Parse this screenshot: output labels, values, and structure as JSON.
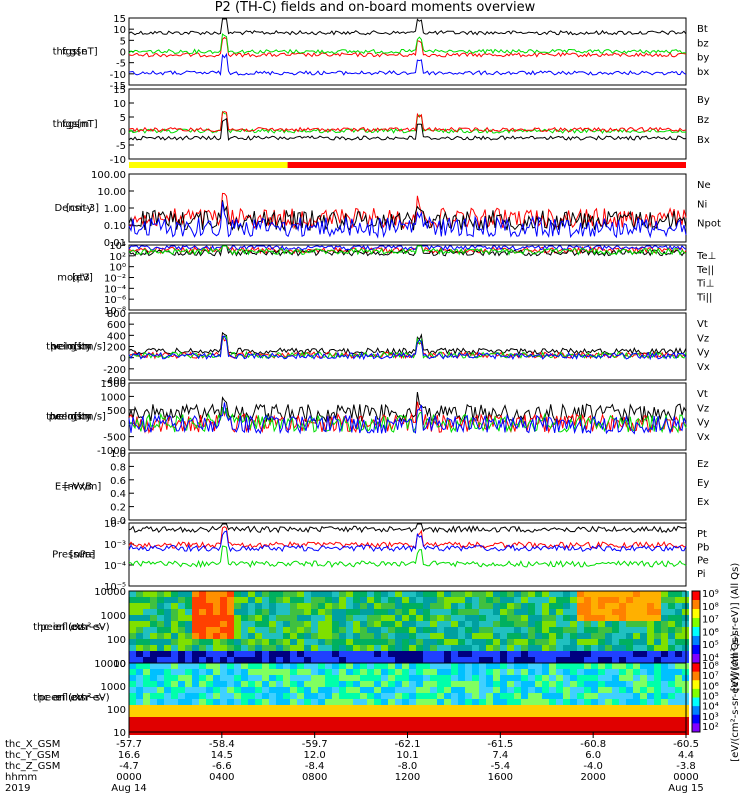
{
  "title": "P2 (TH-C) fields and on-board moments overview",
  "chart_data": {
    "type": "line",
    "title": "P2 (TH-C) fields and on-board moments overview",
    "panels": [
      {
        "id": "fgs_gse",
        "ylabel": [
          "thc",
          "fgs",
          "gse",
          "[nT]"
        ],
        "ylim": [
          -15,
          15
        ],
        "ticks": [
          "15",
          "10",
          "5",
          "0",
          "-5",
          "-10",
          "-15"
        ],
        "series": [
          {
            "name": "Bt",
            "color": "#000000"
          },
          {
            "name": "bz",
            "color": "#ff0000"
          },
          {
            "name": "by",
            "color": "#00dd00"
          },
          {
            "name": "bx",
            "color": "#0000ff"
          }
        ]
      },
      {
        "id": "fgs_gsm",
        "ylabel": [
          "thc",
          "fgs",
          "gsm",
          "[nT]"
        ],
        "ylim": [
          -15,
          15
        ],
        "ticks": [
          "15",
          "10",
          "5",
          "0",
          "-5",
          "-10"
        ],
        "series": [
          {
            "name": "By",
            "color": "#00dd00"
          },
          {
            "name": "Bz",
            "color": "#ff0000"
          },
          {
            "name": "Bx",
            "color": "#000000"
          }
        ]
      },
      {
        "id": "density",
        "ylabel": [
          "Density",
          "[cm-3]"
        ],
        "scale": "log",
        "ticks": [
          "100.00",
          "10.00",
          "1.00",
          "0.10",
          "0.01"
        ],
        "series": [
          {
            "name": "Ne",
            "color": "#ff0000"
          },
          {
            "name": "Ni",
            "color": "#000000"
          },
          {
            "name": "Npot",
            "color": "#0000ff"
          }
        ]
      },
      {
        "id": "temp",
        "ylabel": [
          "moqt3",
          "[eV]"
        ],
        "scale": "log",
        "ticks": [
          "10⁴",
          "10²",
          "10⁰",
          "10⁻²",
          "10⁻⁴",
          "10⁻⁶",
          "10⁻⁸"
        ],
        "series": [
          {
            "name": "Te⊥",
            "color": "#ff0000"
          },
          {
            "name": "Te||",
            "color": "#000000"
          },
          {
            "name": "Ti⊥",
            "color": "#0000ff"
          },
          {
            "name": "Ti||",
            "color": "#00dd00"
          }
        ]
      },
      {
        "id": "ivel",
        "ylabel": [
          "thc",
          "peim",
          "velocity",
          "gsm",
          "[km/s]"
        ],
        "ylim": [
          -400,
          800
        ],
        "ticks": [
          "800",
          "600",
          "400",
          "200",
          "0",
          "-200",
          "-400"
        ],
        "series": [
          {
            "name": "Vt",
            "color": "#000000"
          },
          {
            "name": "Vz",
            "color": "#ff0000"
          },
          {
            "name": "Vy",
            "color": "#00dd00"
          },
          {
            "name": "Vx",
            "color": "#0000ff"
          }
        ]
      },
      {
        "id": "evel",
        "ylabel": [
          "thc",
          "peem",
          "velocity",
          "gsm",
          "[km/s]"
        ],
        "ylim": [
          -1000,
          1500
        ],
        "ticks": [
          "1500",
          "1000",
          "500",
          "0",
          "-500",
          "-1000"
        ],
        "series": [
          {
            "name": "Vt",
            "color": "#000000"
          },
          {
            "name": "Vz",
            "color": "#ff0000"
          },
          {
            "name": "Vy",
            "color": "#00dd00"
          },
          {
            "name": "Vx",
            "color": "#0000ff"
          }
        ]
      },
      {
        "id": "efield",
        "ylabel": [
          "E=-VxB",
          "[mV/m]"
        ],
        "ylim": [
          0,
          1
        ],
        "ticks": [
          "1.0",
          "0.8",
          "0.6",
          "0.4",
          "0.2",
          "0.0"
        ],
        "series": [
          {
            "name": "Ez",
            "color": "#ff0000"
          },
          {
            "name": "Ey",
            "color": "#00dd00"
          },
          {
            "name": "Ex",
            "color": "#0000ff"
          }
        ]
      },
      {
        "id": "pressure",
        "ylabel": [
          "Pressure",
          "[nPa]"
        ],
        "scale": "log",
        "ticks": [
          "10⁻²",
          "10⁻³",
          "10⁻⁴",
          "10⁻⁵"
        ],
        "series": [
          {
            "name": "Pt",
            "color": "#000000"
          },
          {
            "name": "Pb",
            "color": "#ff0000"
          },
          {
            "name": "Pe",
            "color": "#00dd00"
          },
          {
            "name": "Pi",
            "color": "#0000ff"
          }
        ]
      },
      {
        "id": "ion_spec",
        "type": "heatmap",
        "ylabel": [
          "thc",
          "peir",
          "en",
          "eflux",
          "eV",
          "(cm²-s-",
          "sr-eV)"
        ],
        "ticks": [
          "10000",
          "1000",
          "100",
          "10"
        ]
      },
      {
        "id": "elec_spec",
        "type": "heatmap",
        "ylabel": [
          "thc",
          "peer",
          "en",
          "eflux",
          "eV",
          "(cm²-s-",
          "sr-eV)"
        ],
        "ticks": [
          "10000",
          "1000",
          "100",
          "10"
        ]
      }
    ],
    "colorbars": [
      {
        "label": "[eV/(cm²-s-sr-eV)] (All Qs)",
        "ticks": [
          "10⁹",
          "10⁸",
          "10⁷",
          "10⁶",
          "10⁵",
          "10⁴"
        ]
      },
      {
        "label": "[eV/(cm²-s-sr-eV)] (All Qs)",
        "ticks": [
          "10⁸",
          "10⁷",
          "10⁶",
          "10⁵",
          "10⁴",
          "10³",
          "10²"
        ]
      }
    ],
    "x_axis": {
      "row_labels": [
        "thc_X_GSM",
        "thc_Y_GSM",
        "thc_Z_GSM",
        "hhmm",
        "2019"
      ],
      "ticks": [
        {
          "vals": [
            "-57.7",
            "16.6",
            "-4.7",
            "0000",
            "Aug 14"
          ]
        },
        {
          "vals": [
            "-58.4",
            "14.5",
            "-6.6",
            "0400",
            ""
          ]
        },
        {
          "vals": [
            "-59.7",
            "12.0",
            "-8.4",
            "0800",
            ""
          ]
        },
        {
          "vals": [
            "-62.1",
            "10.1",
            "-8.0",
            "1200",
            ""
          ]
        },
        {
          "vals": [
            "-61.5",
            "7.4",
            "-5.4",
            "1600",
            ""
          ]
        },
        {
          "vals": [
            "-60.8",
            "6.0",
            "-4.0",
            "2000",
            ""
          ]
        },
        {
          "vals": [
            "-60.5",
            "4.4",
            "-3.8",
            "0000",
            "Aug 15"
          ]
        }
      ]
    },
    "mode_bar": [
      {
        "start_hhmm": "0000",
        "end_hhmm": "0650",
        "color": "#ffff00"
      },
      {
        "start_hhmm": "0650",
        "end_hhmm": "2400",
        "color": "#ff0000"
      }
    ]
  }
}
